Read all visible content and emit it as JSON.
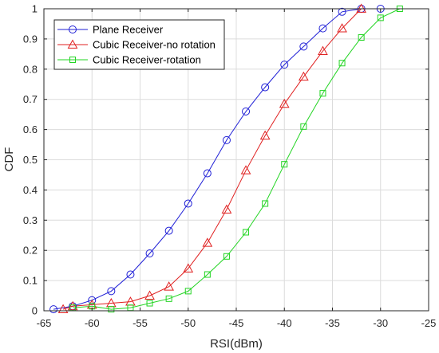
{
  "chart_data": {
    "type": "line",
    "title": "",
    "xlabel": "RSI(dBm)",
    "ylabel": "CDF",
    "xlim": [
      -65,
      -25
    ],
    "ylim": [
      0,
      1
    ],
    "xticks": [
      -65,
      -60,
      -55,
      -50,
      -45,
      -40,
      -35,
      -30,
      -25
    ],
    "yticks": [
      0,
      0.1,
      0.2,
      0.3,
      0.4,
      0.5,
      0.6,
      0.7,
      0.8,
      0.9,
      1
    ],
    "grid": true,
    "legend_position": "top-left",
    "series": [
      {
        "name": "Plane Receiver",
        "color": "#1f1fd6",
        "marker": "circle",
        "x": [
          -64,
          -62,
          -60,
          -58,
          -56,
          -54,
          -52,
          -50,
          -48,
          -46,
          -44,
          -42,
          -40,
          -38,
          -36,
          -34,
          -32,
          -30
        ],
        "y": [
          0.005,
          0.015,
          0.035,
          0.065,
          0.12,
          0.19,
          0.265,
          0.355,
          0.455,
          0.565,
          0.66,
          0.74,
          0.815,
          0.875,
          0.935,
          0.99,
          1.0,
          1.0
        ]
      },
      {
        "name": "Cubic Receiver-no rotation",
        "color": "#e02020",
        "marker": "triangle",
        "x": [
          -63,
          -62,
          -60,
          -58,
          -56,
          -54,
          -52,
          -50,
          -48,
          -46,
          -44,
          -42,
          -40,
          -38,
          -36,
          -34,
          -32
        ],
        "y": [
          0.005,
          0.015,
          0.02,
          0.025,
          0.03,
          0.05,
          0.08,
          0.14,
          0.225,
          0.335,
          0.465,
          0.58,
          0.685,
          0.775,
          0.86,
          0.935,
          1.0
        ]
      },
      {
        "name": "Cubic Receiver-rotation",
        "color": "#22d422",
        "marker": "square",
        "x": [
          -62,
          -60,
          -58,
          -56,
          -54,
          -52,
          -50,
          -48,
          -46,
          -44,
          -42,
          -40,
          -38,
          -36,
          -34,
          -32,
          -30,
          -28
        ],
        "y": [
          0.01,
          0.015,
          0.005,
          0.01,
          0.025,
          0.04,
          0.065,
          0.12,
          0.18,
          0.26,
          0.355,
          0.485,
          0.61,
          0.72,
          0.82,
          0.905,
          0.97,
          1.0
        ]
      }
    ]
  }
}
